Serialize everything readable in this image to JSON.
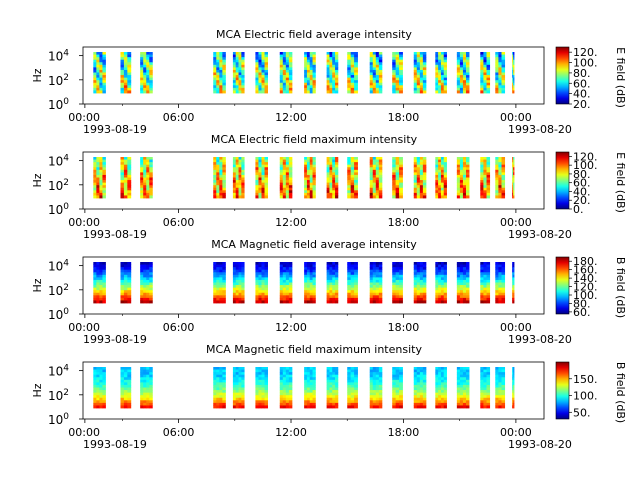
{
  "chart_data": [
    {
      "type": "heatmap",
      "title": "MCA  Electric field average intensity",
      "ylabel": "Hz",
      "y_ticks": [
        "10^0",
        "10^2",
        "10^4"
      ],
      "y_scale": "log",
      "ylim": [
        1,
        20000
      ],
      "x_ticks": [
        "00:00",
        "06:00",
        "12:00",
        "18:00",
        "00:00"
      ],
      "x_dates": [
        "1993-08-19",
        "1993-08-20"
      ],
      "colorbar_label": "E field (dB)",
      "colorbar_ticks": [
        "20.",
        "40.",
        "60.",
        "80.",
        "100.",
        "120."
      ],
      "color_range": [
        20,
        130
      ]
    },
    {
      "type": "heatmap",
      "title": "MCA  Electric field maximum intensity",
      "ylabel": "Hz",
      "y_ticks": [
        "10^0",
        "10^2",
        "10^4"
      ],
      "y_scale": "log",
      "ylim": [
        1,
        20000
      ],
      "x_ticks": [
        "00:00",
        "06:00",
        "12:00",
        "18:00",
        "00:00"
      ],
      "x_dates": [
        "1993-08-19",
        "1993-08-20"
      ],
      "colorbar_label": "E field (dB)",
      "colorbar_ticks": [
        "0.",
        "20.",
        "40.",
        "60.",
        "80.",
        "100.",
        "120."
      ],
      "color_range": [
        0,
        130
      ]
    },
    {
      "type": "heatmap",
      "title": "MCA  Magnetic field average intensity",
      "ylabel": "Hz",
      "y_ticks": [
        "10^0",
        "10^2",
        "10^4"
      ],
      "y_scale": "log",
      "ylim": [
        1,
        20000
      ],
      "x_ticks": [
        "00:00",
        "06:00",
        "12:00",
        "18:00",
        "00:00"
      ],
      "x_dates": [
        "1993-08-19",
        "1993-08-20"
      ],
      "colorbar_label": "B field (dB)",
      "colorbar_ticks": [
        "60.",
        "80.",
        "100.",
        "120.",
        "140.",
        "160.",
        "180."
      ],
      "color_range": [
        55,
        190
      ]
    },
    {
      "type": "heatmap",
      "title": "MCA  Magnetic field maximum intensity",
      "ylabel": "Hz",
      "y_ticks": [
        "10^0",
        "10^2",
        "10^4"
      ],
      "y_scale": "log",
      "ylim": [
        1,
        20000
      ],
      "x_ticks": [
        "00:00",
        "06:00",
        "12:00",
        "18:00",
        "00:00"
      ],
      "x_dates": [
        "1993-08-19",
        "1993-08-20"
      ],
      "colorbar_label": "B field (dB)",
      "colorbar_ticks": [
        "50.",
        "100.",
        "150."
      ],
      "color_range": [
        30,
        200
      ]
    }
  ],
  "data_intervals_hours": [
    [
      0.3,
      0.85
    ],
    [
      1.45,
      2.1
    ],
    [
      2.9,
      3.45
    ],
    [
      3.95,
      4.6
    ],
    [
      7.85,
      8.5
    ],
    [
      8.9,
      9.5
    ],
    [
      10.1,
      10.75
    ],
    [
      11.4,
      12.05
    ],
    [
      12.7,
      13.3
    ],
    [
      13.9,
      14.5
    ],
    [
      15.0,
      15.55
    ],
    [
      16.2,
      16.85
    ],
    [
      17.4,
      17.95
    ],
    [
      18.55,
      19.2
    ],
    [
      19.7,
      20.3
    ],
    [
      20.85,
      21.5
    ],
    [
      22.1,
      22.6
    ],
    [
      22.9,
      23.4
    ],
    [
      23.8,
      23.9
    ]
  ]
}
